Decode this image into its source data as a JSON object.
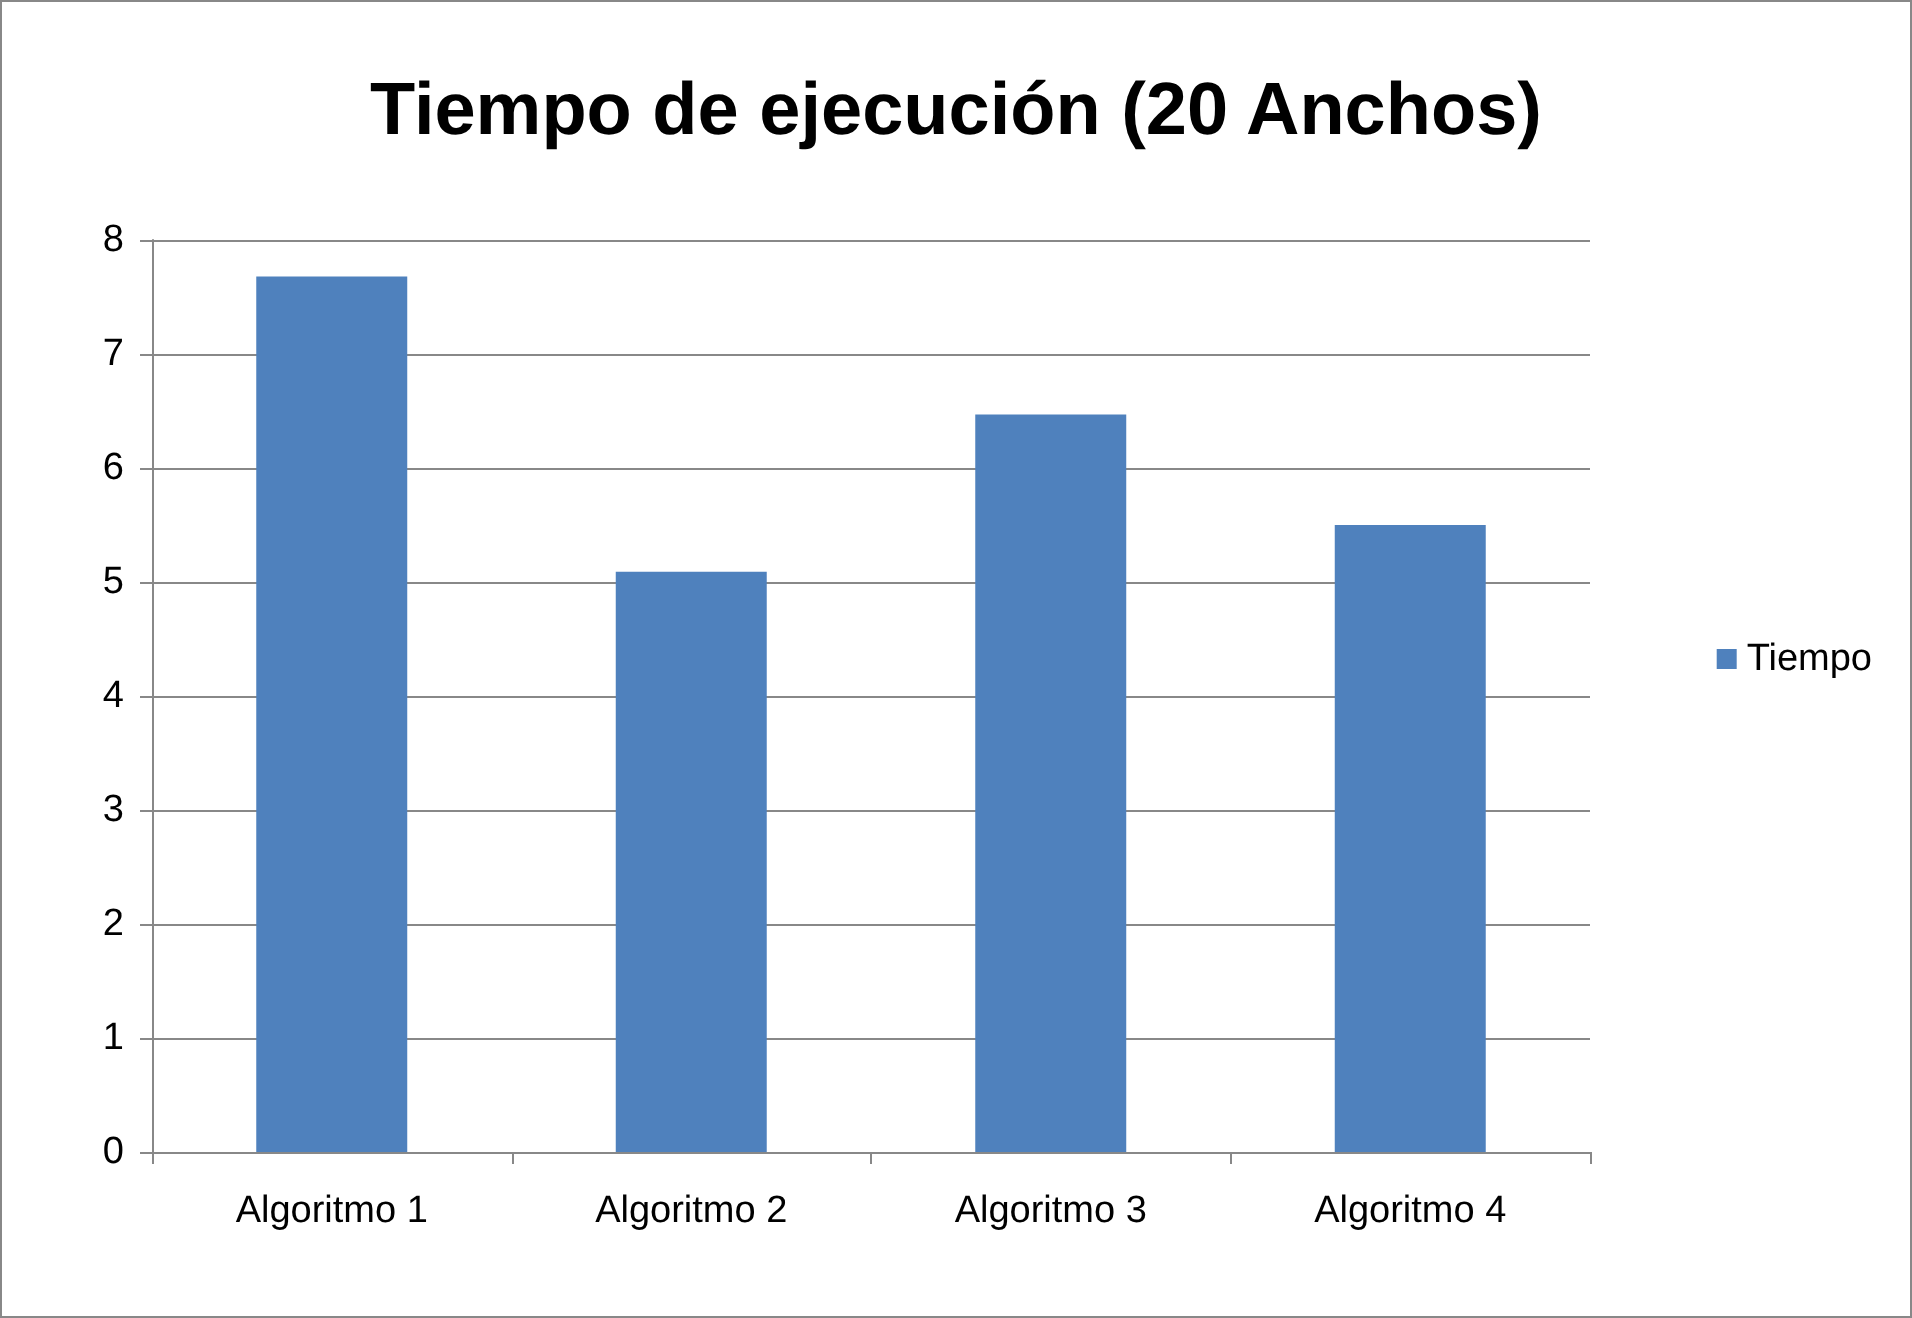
{
  "chart_data": {
    "type": "bar",
    "title": "Tiempo de ejecución (20 Anchos)",
    "categories": [
      "Algoritmo 1",
      "Algoritmo 2",
      "Algoritmo 3",
      "Algoritmo 4"
    ],
    "series": [
      {
        "name": "Tiempo",
        "color": "#4f81bd",
        "values": [
          7.68,
          5.09,
          6.47,
          5.5
        ]
      }
    ],
    "ylim": [
      0,
      8
    ],
    "yticks": [
      0,
      1,
      2,
      3,
      4,
      5,
      6,
      7,
      8
    ],
    "grid": "y",
    "legend": "right"
  }
}
